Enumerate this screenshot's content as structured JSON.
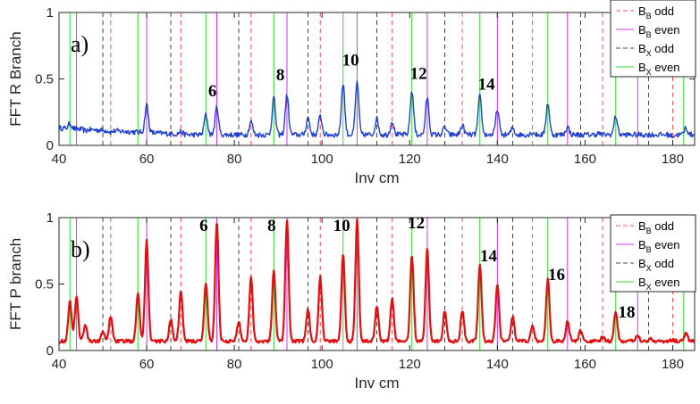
{
  "colors": {
    "bb_odd": "#ff4d4d",
    "bb_even": "#cc33ff",
    "bx_odd": "#444444",
    "bx_even": "#33dd33",
    "trace_a": "#1f3fcf",
    "trace_b": "#e01010"
  },
  "legend_entries": [
    {
      "key": "bb_odd",
      "main": "B",
      "sub": "B",
      "suffix": " odd",
      "style": "dashed"
    },
    {
      "key": "bb_even",
      "main": "B",
      "sub": "B",
      "suffix": " even",
      "style": "solid"
    },
    {
      "key": "bx_odd",
      "main": "B",
      "sub": "X",
      "suffix": " odd",
      "style": "dashed"
    },
    {
      "key": "bx_even",
      "main": "B",
      "sub": "X",
      "suffix": " even",
      "style": "solid"
    }
  ],
  "reference_lines": {
    "bb_odd": [
      51.8,
      67.8,
      83.8,
      99.6,
      116.0,
      132.0,
      148.0,
      164.0,
      180.0
    ],
    "bb_even": [
      44.0,
      60.0,
      76.0,
      92.0,
      108.0,
      124.0,
      140.0,
      156.0,
      172.0
    ],
    "bx_odd": [
      50.0,
      65.5,
      81.0,
      96.8,
      112.5,
      128.0,
      143.5,
      159.0,
      174.5
    ],
    "bx_even": [
      42.5,
      58.0,
      73.5,
      89.0,
      104.8,
      120.5,
      136.0,
      151.5,
      167.0,
      182.5
    ]
  },
  "chart_data": [
    {
      "type": "line",
      "panel_label": "a)",
      "xlabel": "Inv cm",
      "ylabel": "FFT R Branch",
      "xlim": [
        40,
        185
      ],
      "ylim": [
        0,
        1
      ],
      "xticks": [
        "40",
        "60",
        "80",
        "100",
        "120",
        "140",
        "160",
        "180"
      ],
      "yticks": [
        "0",
        "0.5",
        "1"
      ],
      "baseline": 0.08,
      "peaks": [
        [
          42.5,
          0.12
        ],
        [
          44.0,
          0.08
        ],
        [
          46.0,
          0.07
        ],
        [
          51.8,
          0.07
        ],
        [
          58.0,
          0.08
        ],
        [
          60.0,
          0.29
        ],
        [
          67.8,
          0.1
        ],
        [
          73.5,
          0.23
        ],
        [
          76.0,
          0.29
        ],
        [
          83.8,
          0.18
        ],
        [
          89.0,
          0.36
        ],
        [
          92.0,
          0.38
        ],
        [
          96.8,
          0.21
        ],
        [
          99.6,
          0.22
        ],
        [
          104.8,
          0.47
        ],
        [
          108.0,
          0.48
        ],
        [
          112.5,
          0.2
        ],
        [
          116.0,
          0.18
        ],
        [
          120.5,
          0.41
        ],
        [
          124.0,
          0.36
        ],
        [
          128.0,
          0.14
        ],
        [
          132.0,
          0.15
        ],
        [
          136.0,
          0.37
        ],
        [
          140.0,
          0.27
        ],
        [
          143.5,
          0.13
        ],
        [
          148.0,
          0.1
        ],
        [
          151.5,
          0.32
        ],
        [
          156.0,
          0.14
        ],
        [
          159.0,
          0.08
        ],
        [
          163.0,
          0.09
        ],
        [
          167.0,
          0.22
        ],
        [
          172.0,
          0.08
        ],
        [
          174.5,
          0.08
        ],
        [
          180.0,
          0.07
        ],
        [
          183.0,
          0.13
        ]
      ],
      "annotations": [
        {
          "text": "6",
          "x": 75.0,
          "y": 0.37
        },
        {
          "text": "8",
          "x": 90.5,
          "y": 0.49
        },
        {
          "text": "10",
          "x": 106.5,
          "y": 0.6
        },
        {
          "text": "12",
          "x": 122.0,
          "y": 0.5
        },
        {
          "text": "14",
          "x": 137.5,
          "y": 0.42
        }
      ]
    },
    {
      "type": "line",
      "panel_label": "b)",
      "xlabel": "Inv cm",
      "ylabel": "FFT P branch",
      "xlim": [
        40,
        185
      ],
      "ylim": [
        0,
        1
      ],
      "xticks": [
        "40",
        "60",
        "80",
        "100",
        "120",
        "140",
        "160",
        "180"
      ],
      "yticks": [
        "0",
        "0.5",
        "1"
      ],
      "baseline": 0.07,
      "peaks": [
        [
          42.5,
          0.37
        ],
        [
          44.0,
          0.41
        ],
        [
          46.0,
          0.19
        ],
        [
          50.0,
          0.14
        ],
        [
          51.8,
          0.26
        ],
        [
          58.0,
          0.44
        ],
        [
          60.0,
          0.83
        ],
        [
          65.5,
          0.23
        ],
        [
          67.8,
          0.45
        ],
        [
          73.5,
          0.51
        ],
        [
          76.0,
          0.97
        ],
        [
          81.0,
          0.22
        ],
        [
          83.8,
          0.55
        ],
        [
          89.0,
          0.6
        ],
        [
          92.0,
          0.98
        ],
        [
          96.8,
          0.31
        ],
        [
          99.6,
          0.55
        ],
        [
          104.8,
          0.73
        ],
        [
          108.0,
          0.98
        ],
        [
          112.5,
          0.34
        ],
        [
          116.0,
          0.39
        ],
        [
          120.5,
          0.72
        ],
        [
          124.0,
          0.77
        ],
        [
          128.0,
          0.3
        ],
        [
          132.0,
          0.3
        ],
        [
          136.0,
          0.65
        ],
        [
          140.0,
          0.5
        ],
        [
          143.5,
          0.26
        ],
        [
          148.0,
          0.18
        ],
        [
          151.5,
          0.54
        ],
        [
          156.0,
          0.22
        ],
        [
          159.0,
          0.15
        ],
        [
          164.0,
          0.1
        ],
        [
          167.0,
          0.29
        ],
        [
          172.0,
          0.12
        ],
        [
          175.0,
          0.09
        ],
        [
          180.0,
          0.08
        ],
        [
          183.0,
          0.13
        ]
      ],
      "annotations": [
        {
          "text": "6",
          "x": 73.0,
          "y": 0.9
        },
        {
          "text": "8",
          "x": 88.5,
          "y": 0.9
        },
        {
          "text": "10",
          "x": 104.5,
          "y": 0.9
        },
        {
          "text": "12",
          "x": 121.5,
          "y": 0.92
        },
        {
          "text": "14",
          "x": 138.0,
          "y": 0.67
        },
        {
          "text": "16",
          "x": 153.5,
          "y": 0.53
        },
        {
          "text": "18",
          "x": 169.5,
          "y": 0.25
        }
      ]
    }
  ]
}
